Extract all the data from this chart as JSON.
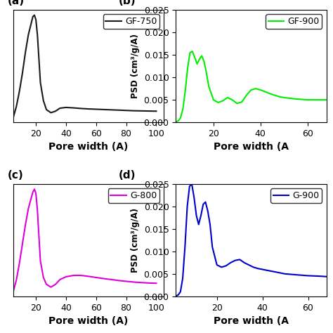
{
  "panel_a": {
    "label": "GF-750",
    "color": "#1a1a1a",
    "xlabel": "Pore width (A)",
    "ylabel": "",
    "xlim": [
      5,
      105
    ],
    "x": [
      5,
      7,
      9,
      11,
      13,
      15,
      17,
      18,
      19,
      20,
      21,
      22,
      23,
      25,
      27,
      30,
      33,
      36,
      40,
      45,
      50,
      55,
      60,
      65,
      70,
      75,
      80,
      85,
      90,
      95,
      100
    ],
    "y": [
      0.05,
      0.12,
      0.22,
      0.34,
      0.48,
      0.6,
      0.68,
      0.72,
      0.73,
      0.7,
      0.6,
      0.44,
      0.28,
      0.16,
      0.1,
      0.08,
      0.09,
      0.11,
      0.115,
      0.112,
      0.108,
      0.105,
      0.103,
      0.101,
      0.099,
      0.097,
      0.095,
      0.093,
      0.092,
      0.091,
      0.09
    ],
    "xticks": [
      20,
      40,
      60,
      80,
      100
    ],
    "show_yticks": false,
    "legend_loc": "upper right"
  },
  "panel_b": {
    "label": "GF-900",
    "color": "#00ee00",
    "xlabel": "Pore width (A",
    "ylabel": "PSD (cm³/g/A)",
    "xlim": [
      4,
      68
    ],
    "ylim": [
      0.0,
      0.025
    ],
    "x": [
      4,
      5,
      6,
      7,
      8,
      9,
      10,
      11,
      12,
      13,
      14,
      15,
      16,
      17,
      18,
      20,
      22,
      24,
      26,
      28,
      30,
      32,
      34,
      36,
      38,
      40,
      42,
      45,
      48,
      50,
      55,
      60,
      65,
      68
    ],
    "y": [
      0.0001,
      0.0003,
      0.001,
      0.003,
      0.007,
      0.012,
      0.0155,
      0.0158,
      0.0145,
      0.013,
      0.014,
      0.0148,
      0.0135,
      0.011,
      0.008,
      0.005,
      0.0044,
      0.0048,
      0.0055,
      0.005,
      0.0042,
      0.0045,
      0.006,
      0.0072,
      0.0075,
      0.0072,
      0.0068,
      0.0062,
      0.0057,
      0.0055,
      0.0052,
      0.005,
      0.005,
      0.005
    ],
    "yticks": [
      0.0,
      0.005,
      0.01,
      0.015,
      0.02,
      0.025
    ],
    "xticks": [
      20,
      40,
      60
    ],
    "legend_loc": "upper right"
  },
  "panel_c": {
    "label": "G-800",
    "color": "#dd00dd",
    "xlabel": "Pore width (A)",
    "ylabel": "",
    "xlim": [
      5,
      105
    ],
    "x": [
      5,
      7,
      9,
      11,
      13,
      15,
      17,
      18,
      19,
      20,
      21,
      22,
      23,
      25,
      27,
      30,
      33,
      36,
      40,
      45,
      50,
      55,
      60,
      65,
      70,
      75,
      80,
      85,
      90,
      95,
      100
    ],
    "y": [
      0.06,
      0.14,
      0.26,
      0.4,
      0.54,
      0.66,
      0.74,
      0.78,
      0.8,
      0.77,
      0.65,
      0.46,
      0.28,
      0.16,
      0.11,
      0.09,
      0.11,
      0.145,
      0.165,
      0.175,
      0.175,
      0.168,
      0.16,
      0.152,
      0.145,
      0.138,
      0.132,
      0.127,
      0.123,
      0.12,
      0.118
    ],
    "xticks": [
      20,
      40,
      60,
      80,
      100
    ],
    "show_yticks": false,
    "legend_loc": "upper right"
  },
  "panel_d": {
    "label": "G-900",
    "color": "#0000cc",
    "xlabel": "Pore width (A",
    "ylabel": "PSD (cm³/g/A)",
    "xlim": [
      2,
      68
    ],
    "ylim": [
      0.0,
      0.025
    ],
    "x": [
      2,
      3,
      4,
      5,
      6,
      7,
      8,
      9,
      10,
      11,
      12,
      13,
      14,
      15,
      16,
      17,
      18,
      20,
      22,
      24,
      26,
      28,
      30,
      32,
      34,
      36,
      38,
      40,
      42,
      45,
      48,
      50,
      55,
      60,
      65,
      68
    ],
    "y": [
      0.0001,
      0.0003,
      0.001,
      0.004,
      0.011,
      0.02,
      0.0245,
      0.025,
      0.022,
      0.018,
      0.016,
      0.018,
      0.0205,
      0.021,
      0.019,
      0.016,
      0.011,
      0.007,
      0.0065,
      0.0068,
      0.0075,
      0.008,
      0.0082,
      0.0075,
      0.007,
      0.0065,
      0.0062,
      0.006,
      0.0058,
      0.0055,
      0.0052,
      0.005,
      0.0048,
      0.0046,
      0.0045,
      0.0044
    ],
    "yticks": [
      0.0,
      0.005,
      0.01,
      0.015,
      0.02,
      0.025
    ],
    "xticks": [
      20,
      40,
      60
    ],
    "legend_loc": "upper right"
  },
  "panel_labels": [
    "(a)",
    "(b)",
    "(c)",
    "(d)"
  ],
  "label_fontsize": 11,
  "tick_fontsize": 9,
  "axis_label_fontsize": 10,
  "legend_fontsize": 9,
  "line_width": 1.5,
  "bg_color": "#ffffff"
}
